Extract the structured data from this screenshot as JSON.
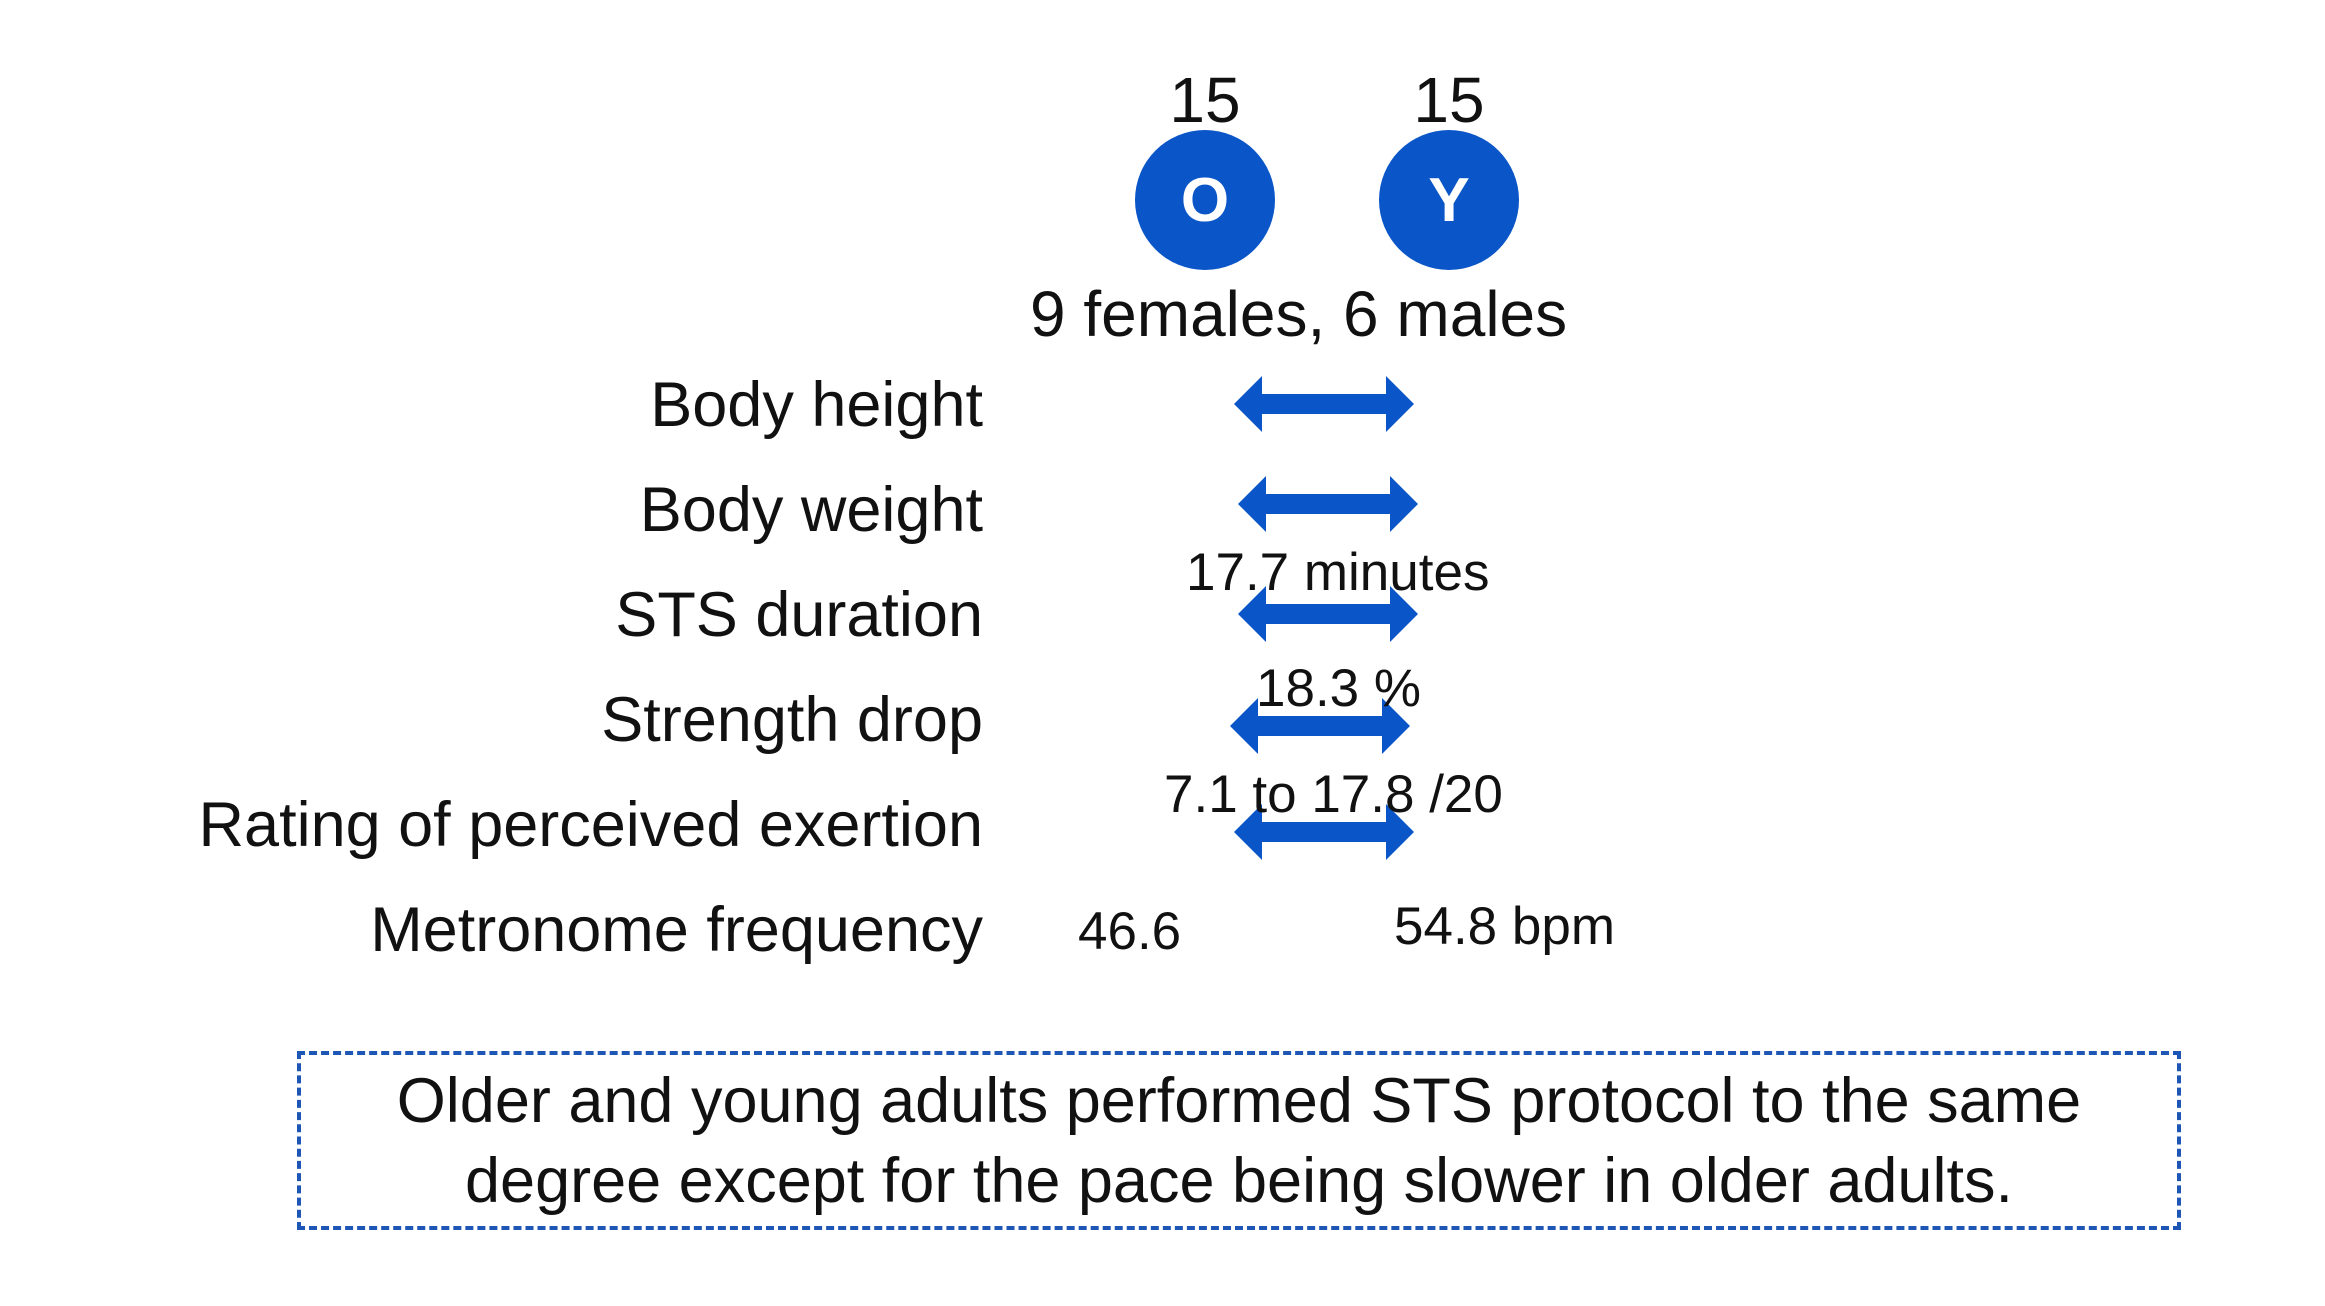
{
  "groups": [
    {
      "count": "15",
      "letter": "O"
    },
    {
      "count": "15",
      "letter": "Y"
    }
  ],
  "sex_split": "9 females, 6 males",
  "rows": [
    {
      "label": "Body height"
    },
    {
      "label": "Body weight"
    },
    {
      "label": "STS duration",
      "value": "17.7 minutes"
    },
    {
      "label": "Strength drop",
      "value": "18.3 %"
    },
    {
      "label": "Rating of perceived exertion",
      "value": "7.1 to 17.8 /20"
    },
    {
      "label": "Metronome frequency",
      "value_old": "46.6",
      "value_young": "54.8 bpm"
    }
  ],
  "summary": {
    "line1": "Older and young adults performed STS protocol to the same",
    "line2": "degree except for the pace being slower in older adults."
  },
  "colors": {
    "accent": "#0a55c7",
    "box_border": "#1d56b4",
    "text": "#111111"
  }
}
